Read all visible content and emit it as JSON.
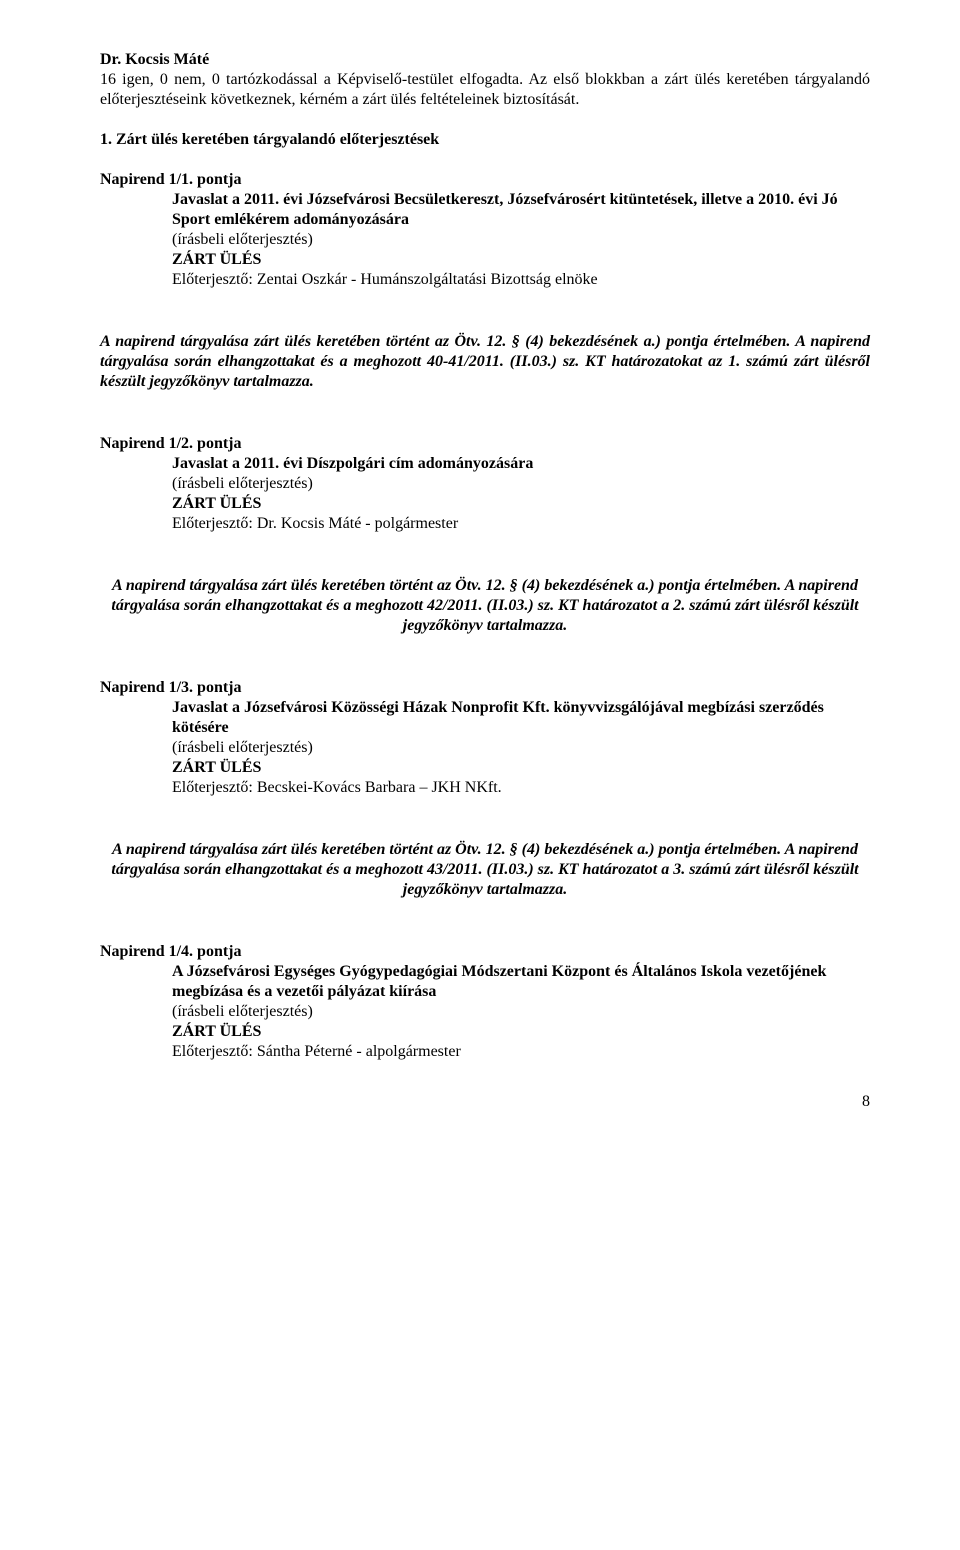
{
  "intro": {
    "speaker": "Dr. Kocsis Máté",
    "line1": "16 igen, 0 nem, 0 tartózkodással a Képviselő-testület elfogadta. Az első blokkban a zárt ülés keretében tárgyalandó előterjesztéseink következnek, kérném a zárt ülés feltételeinek biztosítását."
  },
  "section1": {
    "heading": "1. Zárt ülés keretében tárgyalandó előterjesztések",
    "napirend_label": "Napirend 1/1. pontja",
    "title_l1": "Javaslat a 2011. évi Józsefvárosi Becsületkereszt, Józsefvárosért kitüntetések, illetve a 2010. évi Jó Sport emlékérem adományozására",
    "irasbeli": "(írásbeli előterjesztés)",
    "zart": "ZÁRT ÜLÉS",
    "eloterj": "Előterjesztő: Zentai Oszkár - Humánszolgáltatási Bizottság elnöke",
    "summary": "A napirend tárgyalása zárt ülés keretében történt az Ötv. 12. § (4) bekezdésének a.) pontja értelmében. A napirend tárgyalása során elhangzottakat és a meghozott 40-41/2011. (II.03.) sz. KT határozatokat az 1. számú zárt ülésről készült jegyzőkönyv tartalmazza."
  },
  "section2": {
    "napirend_label": "Napirend 1/2. pontja",
    "title": "Javaslat a 2011. évi Díszpolgári cím adományozására",
    "irasbeli": "(írásbeli előterjesztés)",
    "zart": "ZÁRT ÜLÉS",
    "eloterj": "Előterjesztő: Dr. Kocsis Máté - polgármester",
    "summary": "A napirend tárgyalása zárt ülés keretében történt az Ötv. 12. § (4) bekezdésének a.) pontja értelmében. A napirend tárgyalása során elhangzottakat és a meghozott 42/2011. (II.03.) sz. KT határozatot a 2. számú zárt ülésről készült jegyzőkönyv tartalmazza."
  },
  "section3": {
    "napirend_label": "Napirend 1/3. pontja",
    "title_l1": "Javaslat a Józsefvárosi Közösségi Házak Nonprofit Kft. könyvvizsgálójával megbízási szerződés kötésére",
    "irasbeli": "(írásbeli előterjesztés)",
    "zart": "ZÁRT ÜLÉS",
    "eloterj": "Előterjesztő: Becskei-Kovács Barbara – JKH NKft.",
    "summary": "A napirend tárgyalása zárt ülés keretében történt az Ötv. 12. § (4) bekezdésének a.) pontja értelmében. A napirend tárgyalása során elhangzottakat és a meghozott 43/2011. (II.03.) sz. KT határozatot a 3. számú zárt ülésről készült jegyzőkönyv tartalmazza."
  },
  "section4": {
    "napirend_label": "Napirend 1/4. pontja",
    "title_l1": "A Józsefvárosi Egységes Gyógypedagógiai Módszertani Központ és Általános Iskola vezetőjének megbízása és a vezetői pályázat kiírása ",
    "irasbeli": "(írásbeli előterjesztés)",
    "zart": "ZÁRT ÜLÉS",
    "eloterj": "Előterjesztő: Sántha Péterné - alpolgármester"
  },
  "page_number": "8"
}
